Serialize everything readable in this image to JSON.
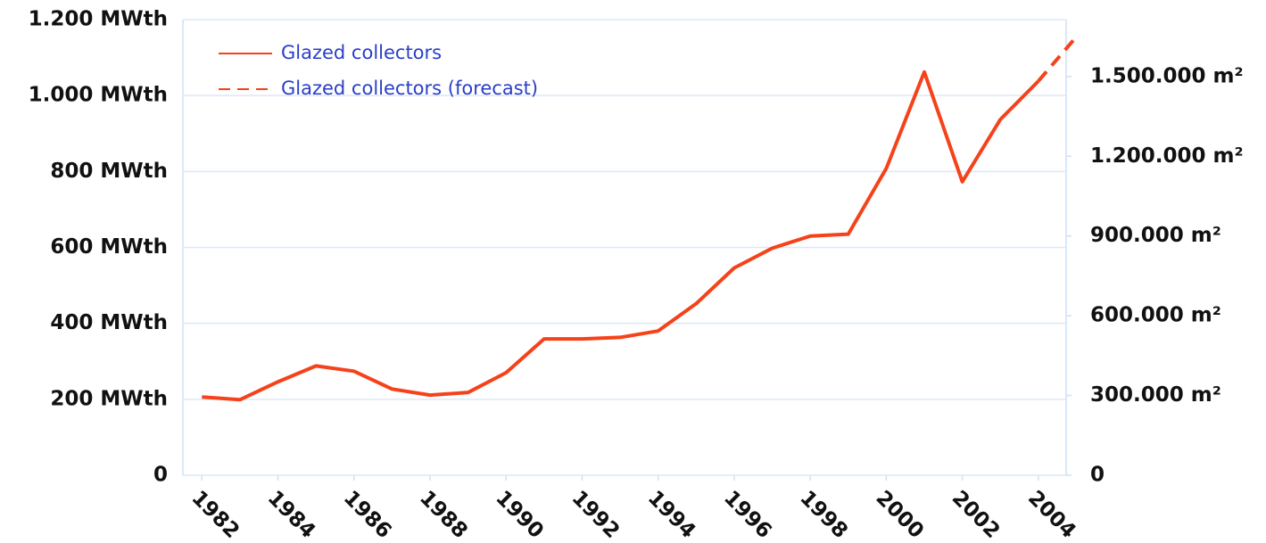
{
  "chart_data": {
    "type": "line",
    "x": [
      1982,
      1983,
      1984,
      1985,
      1986,
      1987,
      1988,
      1989,
      1990,
      1991,
      1992,
      1993,
      1994,
      1995,
      1996,
      1997,
      1998,
      1999,
      2000,
      2001,
      2002,
      2003,
      2004,
      2005
    ],
    "series": [
      {
        "name": "Glazed collectors",
        "color": "#f5421a",
        "linestyle": "solid",
        "axis": "y",
        "values": [
          206,
          199,
          246,
          288,
          274,
          227,
          211,
          218,
          270,
          359,
          359,
          363,
          380,
          452,
          546,
          598,
          630,
          635,
          808,
          1062,
          773,
          937,
          1038,
          null
        ]
      },
      {
        "name": "Glazed collectors (forecast)",
        "color": "#f5421a",
        "linestyle": "dashed",
        "axis": "y",
        "values": [
          null,
          null,
          null,
          null,
          null,
          null,
          null,
          null,
          null,
          null,
          null,
          null,
          null,
          null,
          null,
          null,
          null,
          null,
          null,
          null,
          null,
          null,
          1038,
          1155
        ]
      }
    ],
    "xlim": [
      1981.5,
      2005.2
    ],
    "xticks": [
      1982,
      1984,
      1986,
      1988,
      1990,
      1992,
      1994,
      1996,
      1998,
      2000,
      2002,
      2004
    ],
    "ylim": [
      0,
      1200
    ],
    "yticks": [
      0,
      {
        "value": 200,
        "label": "200 MWth"
      },
      {
        "value": 400,
        "label": "400 MWth"
      },
      {
        "value": 600,
        "label": "600 MWth"
      },
      {
        "value": 800,
        "label": "800 MWth"
      },
      {
        "value": 1000,
        "label": "1.000 MWth"
      },
      {
        "value": 1200,
        "label": "1.200 MWth"
      }
    ],
    "y2lim": [
      0,
      1714286
    ],
    "y2ticks": [
      0,
      {
        "value": 300000,
        "label": "300.000 m²"
      },
      {
        "value": 600000,
        "label": "600.000 m²"
      },
      {
        "value": 900000,
        "label": "900.000 m²"
      },
      {
        "value": 1200000,
        "label": "1.200.000 m²"
      },
      {
        "value": 1500000,
        "label": "1.500.000 m²"
      }
    ],
    "grid": true,
    "legend": "upper left"
  }
}
